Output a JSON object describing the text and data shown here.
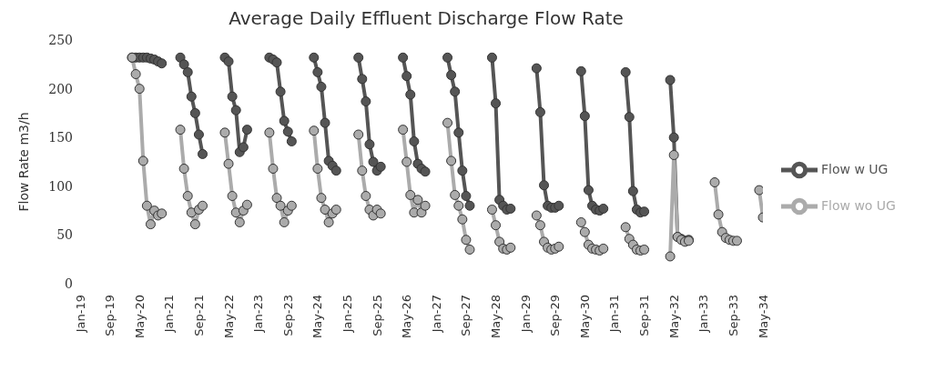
{
  "chart_data": {
    "type": "line",
    "title": "Average Daily Effluent Discharge Flow Rate",
    "ylabel": "Flow Rate m3/h",
    "xlim": [
      "2019-01",
      "2034-05"
    ],
    "xticks": [
      {
        "value": "2019-01",
        "label": "Jan-19"
      },
      {
        "value": "2019-09",
        "label": "Sep-19"
      },
      {
        "value": "2020-05",
        "label": "May-20"
      },
      {
        "value": "2021-01",
        "label": "Jan-21"
      },
      {
        "value": "2021-09",
        "label": "Sep-21"
      },
      {
        "value": "2022-05",
        "label": "May-22"
      },
      {
        "value": "2023-01",
        "label": "Jan-23"
      },
      {
        "value": "2023-09",
        "label": "Sep-23"
      },
      {
        "value": "2024-05",
        "label": "May-24"
      },
      {
        "value": "2025-01",
        "label": "Jan-25"
      },
      {
        "value": "2025-09",
        "label": "Sep-25"
      },
      {
        "value": "2026-05",
        "label": "May-26"
      },
      {
        "value": "2027-01",
        "label": "Jan-27"
      },
      {
        "value": "2027-09",
        "label": "Sep-27"
      },
      {
        "value": "2028-05",
        "label": "May-28"
      },
      {
        "value": "2029-01",
        "label": "Jan-29"
      },
      {
        "value": "2029-09",
        "label": "Sep-29"
      },
      {
        "value": "2030-05",
        "label": "May-30"
      },
      {
        "value": "2031-01",
        "label": "Jan-31"
      },
      {
        "value": "2031-09",
        "label": "Sep-31"
      },
      {
        "value": "2032-05",
        "label": "May-32"
      },
      {
        "value": "2033-01",
        "label": "Jan-33"
      },
      {
        "value": "2033-09",
        "label": "Sep-33"
      },
      {
        "value": "2034-05",
        "label": "May-34"
      }
    ],
    "ylim": [
      0,
      250
    ],
    "yticks": [
      0,
      50,
      100,
      150,
      200,
      250
    ],
    "grid": false,
    "legend": "right",
    "marker": "circle",
    "line_style": "solid",
    "series": [
      {
        "name": "Flow w UG",
        "color": "#555555",
        "x": [
          "2020-03",
          "2020-04",
          "2020-05",
          "2020-06",
          "2020-07",
          "2020-08",
          "2020-09",
          "2020-10",
          "2020-11",
          "2021-01",
          "2021-04",
          "2021-05",
          "2021-06",
          "2021-07",
          "2021-08",
          "2021-09",
          "2021-10",
          "2022-01",
          "2022-04",
          "2022-05",
          "2022-06",
          "2022-07",
          "2022-08",
          "2022-09",
          "2022-10",
          "2023-01",
          "2023-04",
          "2023-05",
          "2023-06",
          "2023-07",
          "2023-08",
          "2023-09",
          "2023-10",
          "2024-01",
          "2024-04",
          "2024-05",
          "2024-06",
          "2024-07",
          "2024-08",
          "2024-09",
          "2024-10",
          "2025-01",
          "2025-04",
          "2025-05",
          "2025-06",
          "2025-07",
          "2025-08",
          "2025-09",
          "2025-10",
          "2026-01",
          "2026-04",
          "2026-05",
          "2026-06",
          "2026-07",
          "2026-08",
          "2026-09",
          "2026-10",
          "2027-01",
          "2027-04",
          "2027-05",
          "2027-06",
          "2027-07",
          "2027-08",
          "2027-09",
          "2027-10",
          "2028-01",
          "2028-04",
          "2028-05",
          "2028-06",
          "2028-07",
          "2028-08",
          "2028-09",
          "2029-01",
          "2029-04",
          "2029-05",
          "2029-06",
          "2029-07",
          "2029-08",
          "2029-09",
          "2029-10",
          "2030-01",
          "2030-04",
          "2030-05",
          "2030-06",
          "2030-07",
          "2030-08",
          "2030-09",
          "2030-10",
          "2031-01",
          "2031-04",
          "2031-05",
          "2031-06",
          "2031-07",
          "2031-08",
          "2031-09",
          "2032-01",
          "2032-04",
          "2032-05",
          "2032-06",
          "2032-07",
          "2032-08",
          "2032-09"
        ],
        "values": [
          232,
          232,
          232,
          232,
          232,
          231,
          230,
          228,
          226,
          null,
          232,
          225,
          217,
          192,
          175,
          153,
          133,
          null,
          232,
          228,
          192,
          178,
          135,
          140,
          158,
          null,
          232,
          230,
          227,
          197,
          167,
          156,
          146,
          null,
          232,
          217,
          202,
          165,
          126,
          121,
          116,
          null,
          232,
          210,
          187,
          143,
          125,
          116,
          120,
          null,
          232,
          213,
          194,
          146,
          123,
          118,
          115,
          null,
          232,
          214,
          197,
          155,
          116,
          90,
          80,
          null,
          232,
          185,
          86,
          80,
          76,
          77,
          null,
          221,
          176,
          101,
          80,
          78,
          78,
          80,
          null,
          218,
          172,
          96,
          80,
          76,
          75,
          77,
          null,
          217,
          171,
          95,
          76,
          73,
          74,
          null,
          209,
          150,
          48,
          46,
          44,
          45
        ]
      },
      {
        "name": "Flow wo UG",
        "color": "#ababab",
        "x": [
          "2020-03",
          "2020-04",
          "2020-05",
          "2020-06",
          "2020-07",
          "2020-08",
          "2020-09",
          "2020-10",
          "2020-11",
          "2021-01",
          "2021-04",
          "2021-05",
          "2021-06",
          "2021-07",
          "2021-08",
          "2021-09",
          "2021-10",
          "2022-01",
          "2022-04",
          "2022-05",
          "2022-06",
          "2022-07",
          "2022-08",
          "2022-09",
          "2022-10",
          "2023-01",
          "2023-04",
          "2023-05",
          "2023-06",
          "2023-07",
          "2023-08",
          "2023-09",
          "2023-10",
          "2024-01",
          "2024-04",
          "2024-05",
          "2024-06",
          "2024-07",
          "2024-08",
          "2024-09",
          "2024-10",
          "2025-01",
          "2025-04",
          "2025-05",
          "2025-06",
          "2025-07",
          "2025-08",
          "2025-09",
          "2025-10",
          "2026-01",
          "2026-04",
          "2026-05",
          "2026-06",
          "2026-07",
          "2026-08",
          "2026-09",
          "2026-10",
          "2027-01",
          "2027-04",
          "2027-05",
          "2027-06",
          "2027-07",
          "2027-08",
          "2027-09",
          "2027-10",
          "2028-01",
          "2028-04",
          "2028-05",
          "2028-06",
          "2028-07",
          "2028-08",
          "2028-09",
          "2029-01",
          "2029-04",
          "2029-05",
          "2029-06",
          "2029-07",
          "2029-08",
          "2029-09",
          "2029-10",
          "2030-01",
          "2030-04",
          "2030-05",
          "2030-06",
          "2030-07",
          "2030-08",
          "2030-09",
          "2030-10",
          "2031-01",
          "2031-04",
          "2031-05",
          "2031-06",
          "2031-07",
          "2031-08",
          "2031-09",
          "2032-01",
          "2032-04",
          "2032-05",
          "2032-06",
          "2032-07",
          "2032-08",
          "2032-09",
          "2033-01",
          "2033-04",
          "2033-05",
          "2033-06",
          "2033-07",
          "2033-08",
          "2033-09",
          "2033-10",
          "2034-01",
          "2034-04",
          "2034-05"
        ],
        "values": [
          232,
          215,
          200,
          126,
          80,
          61,
          75,
          70,
          72,
          null,
          158,
          118,
          90,
          73,
          61,
          76,
          80,
          null,
          155,
          123,
          90,
          73,
          63,
          75,
          81,
          null,
          155,
          118,
          88,
          80,
          63,
          75,
          80,
          null,
          157,
          118,
          88,
          76,
          63,
          72,
          76,
          null,
          153,
          116,
          90,
          76,
          70,
          76,
          72,
          null,
          158,
          125,
          91,
          73,
          86,
          73,
          80,
          null,
          165,
          126,
          91,
          80,
          66,
          45,
          35,
          null,
          76,
          60,
          43,
          36,
          35,
          37,
          null,
          70,
          60,
          43,
          37,
          35,
          36,
          38,
          null,
          63,
          53,
          40,
          36,
          35,
          34,
          36,
          null,
          58,
          46,
          40,
          35,
          34,
          35,
          null,
          28,
          132,
          48,
          45,
          43,
          44,
          null,
          104,
          71,
          53,
          47,
          45,
          44,
          44,
          null,
          96,
          68
        ]
      }
    ]
  }
}
